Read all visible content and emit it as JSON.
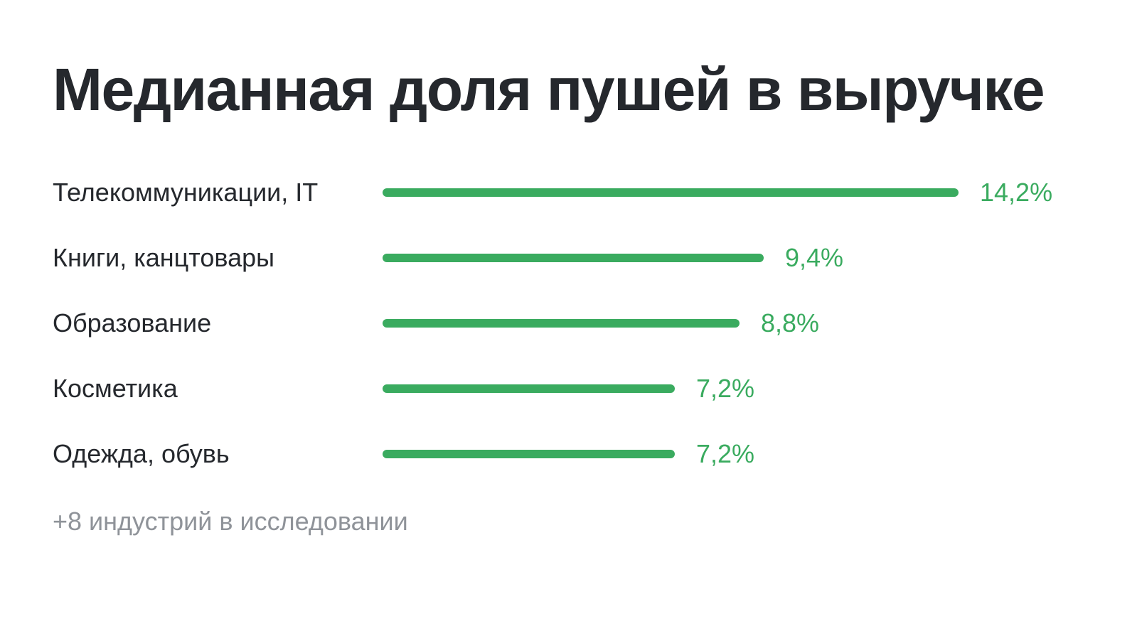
{
  "chart_data": {
    "type": "bar",
    "orientation": "horizontal",
    "title": "Медианная доля пушей в выручке",
    "categories": [
      "Телекоммуникации, IT",
      "Книги, канцтовары",
      "Образование",
      "Косметика",
      "Одежда, обувь"
    ],
    "values": [
      14.2,
      9.4,
      8.8,
      7.2,
      7.2
    ],
    "value_labels": [
      "14,2%",
      "9,4%",
      "8,8%",
      "7,2%",
      "7,2%"
    ],
    "unit": "%",
    "xlim": [
      0,
      14.2
    ],
    "grid": false,
    "legend": "none",
    "footnote": "+8 индустрий в исследовании"
  },
  "colors": {
    "bar": "#3aab5f",
    "value_text": "#3aab5f",
    "title_text": "#25282d",
    "label_text": "#25282d",
    "footnote_text": "#8f9399"
  }
}
